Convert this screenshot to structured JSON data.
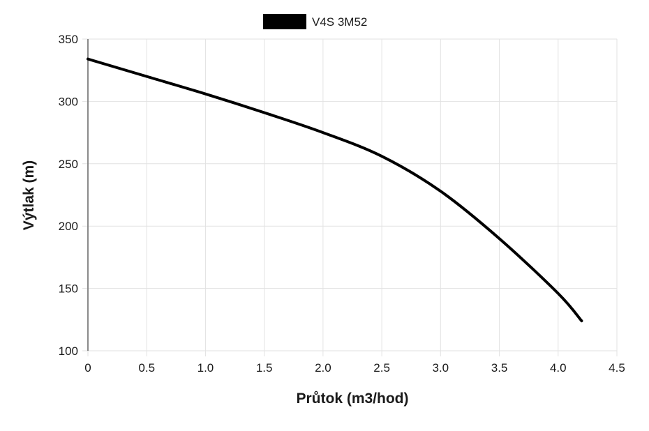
{
  "chart_data": {
    "type": "line",
    "title": "",
    "xlabel": "Průtok (m3/hod)",
    "ylabel": "Výtlak (m)",
    "xlim": [
      0,
      4.5
    ],
    "ylim": [
      100,
      350
    ],
    "x_ticks": [
      "0",
      "0.5",
      "1.0",
      "1.5",
      "2.0",
      "2.5",
      "3.0",
      "3.5",
      "4.0",
      "4.5"
    ],
    "y_ticks": [
      "100",
      "150",
      "200",
      "250",
      "300",
      "350"
    ],
    "grid": true,
    "legend_position": "top-center",
    "series": [
      {
        "name": "V4S 3M52",
        "color": "#000000",
        "x": [
          0,
          0.5,
          1.0,
          1.5,
          2.0,
          2.5,
          3.0,
          3.5,
          4.0,
          4.2
        ],
        "y": [
          334,
          320,
          306,
          291,
          275,
          256,
          228,
          190,
          146,
          124
        ]
      }
    ]
  }
}
